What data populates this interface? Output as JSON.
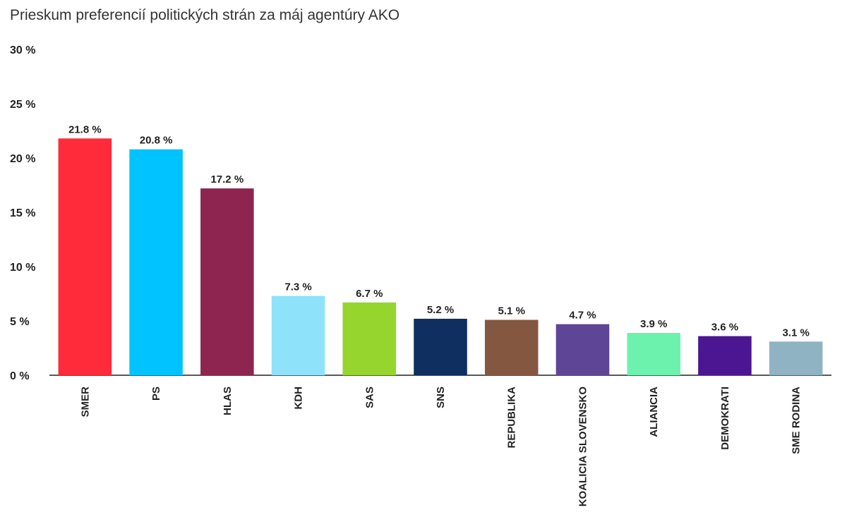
{
  "chart_data": {
    "type": "bar",
    "title": "Prieskum preferencií politických strán za máj agentúry AKO",
    "xlabel": "",
    "ylabel": "",
    "ylim": [
      0,
      30
    ],
    "yticks": [
      "0 %",
      "5 %",
      "10 %",
      "15 %",
      "20 %",
      "25 %",
      "30 %"
    ],
    "ytick_values": [
      0,
      5,
      10,
      15,
      20,
      25,
      30
    ],
    "grid": false,
    "categories": [
      "SMER",
      "PS",
      "HLAS",
      "KDH",
      "SAS",
      "SNS",
      "REPUBLIKA",
      "KOALICIA SLOVENSKO",
      "ALIANCIA",
      "DEMOKRATI",
      "SME RODINA"
    ],
    "values": [
      21.8,
      20.8,
      17.2,
      7.3,
      6.7,
      5.2,
      5.1,
      4.7,
      3.9,
      3.6,
      3.1
    ],
    "data_labels": [
      "21.8 %",
      "20.8 %",
      "17.2 %",
      "7.3 %",
      "6.7 %",
      "5.2 %",
      "5.1 %",
      "4.7 %",
      "3.9 %",
      "3.6 %",
      "3.1 %"
    ],
    "colors": [
      "#ff2a3a",
      "#00c3ff",
      "#8e2550",
      "#8ee2fa",
      "#96d42e",
      "#0e2f5f",
      "#845840",
      "#5f4595",
      "#6df2ae",
      "#4c1591",
      "#8fb3c3"
    ]
  }
}
